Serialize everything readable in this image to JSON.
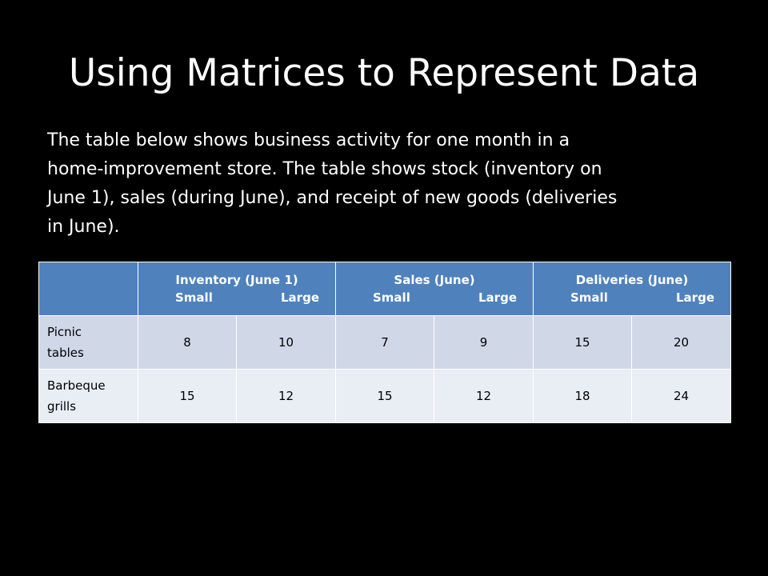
{
  "title": "Using Matrices to Represent Data",
  "paragraph": {
    "line1": "The table below shows business activity for one month in a",
    "line2": "home-improvement store.  The table shows stock (inventory on",
    "line3": "June 1), sales (during June), and receipt of new goods (deliveries",
    "line4": "in June)."
  },
  "table": {
    "groups": [
      {
        "title": "Inventory (June 1)",
        "sub_left": "Small",
        "sub_right": "Large"
      },
      {
        "title": "Sales (June)",
        "sub_left": "Small",
        "sub_right": "Large"
      },
      {
        "title": "Deliveries (June)",
        "sub_left": "Small",
        "sub_right": "Large"
      }
    ],
    "rows": [
      {
        "label_line1": "Picnic",
        "label_line2": "tables",
        "values": [
          "8",
          "10",
          "7",
          "9",
          "15",
          "20"
        ]
      },
      {
        "label_line1": "Barbeque",
        "label_line2": "grills",
        "values": [
          "15",
          "12",
          "15",
          "12",
          "18",
          "24"
        ]
      }
    ]
  },
  "colors": {
    "background": "#000000",
    "header": "#4f81bd",
    "row_odd": "#d0d8e8",
    "row_even": "#e9edf4"
  }
}
